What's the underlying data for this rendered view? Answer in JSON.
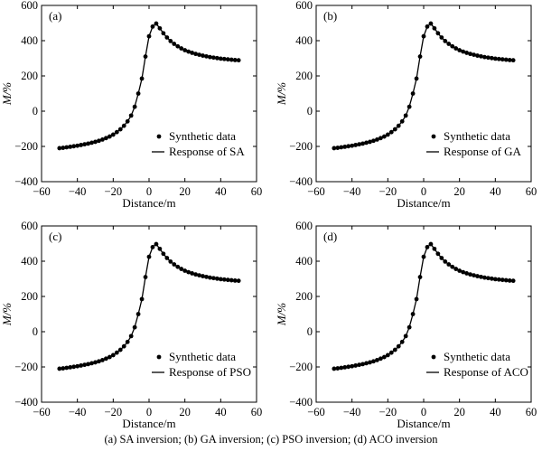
{
  "figure": {
    "caption": "(a) SA inversion; (b) GA inversion; (c) PSO inversion; (d) ACO inversion"
  },
  "chart_data": [
    {
      "type": "line",
      "panel_label": "(a)",
      "xlabel": "Distance/m",
      "ylabel": "M/%",
      "xlim": [
        -60,
        60
      ],
      "ylim": [
        -400,
        600
      ],
      "xticks": [
        "−60",
        "−40",
        "−20",
        "0",
        "20",
        "40",
        "60"
      ],
      "yticks": [
        "−400",
        "−200",
        "0",
        "200",
        "400",
        "600"
      ],
      "grid": false,
      "legend_position": "lower-right",
      "series": [
        {
          "name": "Synthetic data",
          "style": "markers",
          "x": [
            -50,
            -48,
            -46,
            -44,
            -42,
            -40,
            -38,
            -36,
            -34,
            -32,
            -30,
            -28,
            -26,
            -24,
            -22,
            -20,
            -18,
            -16,
            -14,
            -12,
            -10,
            -8,
            -6,
            -4,
            -2,
            0,
            2,
            4,
            6,
            8,
            10,
            12,
            14,
            16,
            18,
            20,
            22,
            24,
            26,
            28,
            30,
            32,
            34,
            36,
            38,
            40,
            42,
            44,
            46,
            48,
            50
          ],
          "y": [
            -210,
            -208,
            -205,
            -202,
            -199,
            -196,
            -192,
            -188,
            -184,
            -179,
            -174,
            -168,
            -161,
            -153,
            -144,
            -133,
            -119,
            -103,
            -83,
            -58,
            -25,
            25,
            100,
            185,
            310,
            425,
            480,
            497,
            470,
            442,
            418,
            398,
            382,
            368,
            356,
            346,
            338,
            331,
            325,
            320,
            315,
            311,
            307,
            304,
            301,
            298,
            296,
            294,
            292,
            290,
            289
          ]
        },
        {
          "name": "Response of SA",
          "style": "line",
          "x": [
            -50,
            -48,
            -46,
            -44,
            -42,
            -40,
            -38,
            -36,
            -34,
            -32,
            -30,
            -28,
            -26,
            -24,
            -22,
            -20,
            -18,
            -16,
            -14,
            -12,
            -10,
            -8,
            -6,
            -4,
            -2,
            0,
            2,
            4,
            6,
            8,
            10,
            12,
            14,
            16,
            18,
            20,
            22,
            24,
            26,
            28,
            30,
            32,
            34,
            36,
            38,
            40,
            42,
            44,
            46,
            48,
            50
          ],
          "y": [
            -210,
            -208,
            -205,
            -202,
            -199,
            -196,
            -192,
            -188,
            -184,
            -179,
            -174,
            -168,
            -161,
            -153,
            -144,
            -133,
            -119,
            -103,
            -83,
            -58,
            -25,
            25,
            100,
            185,
            310,
            425,
            480,
            497,
            470,
            442,
            418,
            398,
            382,
            368,
            356,
            346,
            338,
            331,
            325,
            320,
            315,
            311,
            307,
            304,
            301,
            298,
            296,
            294,
            292,
            290,
            289
          ]
        }
      ]
    },
    {
      "type": "line",
      "panel_label": "(b)",
      "xlabel": "Distance/m",
      "ylabel": "M/%",
      "xlim": [
        -60,
        60
      ],
      "ylim": [
        -400,
        600
      ],
      "xticks": [
        "−60",
        "−40",
        "−20",
        "0",
        "20",
        "40",
        "60"
      ],
      "yticks": [
        "−400",
        "−200",
        "0",
        "200",
        "400",
        "600"
      ],
      "grid": false,
      "legend_position": "lower-right",
      "series": [
        {
          "name": "Synthetic data",
          "style": "markers",
          "x": [
            -50,
            -48,
            -46,
            -44,
            -42,
            -40,
            -38,
            -36,
            -34,
            -32,
            -30,
            -28,
            -26,
            -24,
            -22,
            -20,
            -18,
            -16,
            -14,
            -12,
            -10,
            -8,
            -6,
            -4,
            -2,
            0,
            2,
            4,
            6,
            8,
            10,
            12,
            14,
            16,
            18,
            20,
            22,
            24,
            26,
            28,
            30,
            32,
            34,
            36,
            38,
            40,
            42,
            44,
            46,
            48,
            50
          ],
          "y": [
            -210,
            -208,
            -205,
            -202,
            -199,
            -196,
            -192,
            -188,
            -184,
            -179,
            -174,
            -168,
            -161,
            -153,
            -144,
            -133,
            -119,
            -103,
            -83,
            -58,
            -25,
            25,
            100,
            185,
            310,
            425,
            480,
            497,
            470,
            442,
            418,
            398,
            382,
            368,
            356,
            346,
            338,
            331,
            325,
            320,
            315,
            311,
            307,
            304,
            301,
            298,
            296,
            294,
            292,
            290,
            289
          ]
        },
        {
          "name": "Response of GA",
          "style": "line",
          "x": [
            -50,
            -48,
            -46,
            -44,
            -42,
            -40,
            -38,
            -36,
            -34,
            -32,
            -30,
            -28,
            -26,
            -24,
            -22,
            -20,
            -18,
            -16,
            -14,
            -12,
            -10,
            -8,
            -6,
            -4,
            -2,
            0,
            2,
            4,
            6,
            8,
            10,
            12,
            14,
            16,
            18,
            20,
            22,
            24,
            26,
            28,
            30,
            32,
            34,
            36,
            38,
            40,
            42,
            44,
            46,
            48,
            50
          ],
          "y": [
            -210,
            -208,
            -205,
            -202,
            -199,
            -196,
            -192,
            -188,
            -184,
            -179,
            -174,
            -168,
            -161,
            -153,
            -144,
            -133,
            -119,
            -103,
            -83,
            -58,
            -25,
            25,
            100,
            185,
            310,
            425,
            480,
            497,
            470,
            442,
            418,
            398,
            382,
            368,
            356,
            346,
            338,
            331,
            325,
            320,
            315,
            311,
            307,
            304,
            301,
            298,
            296,
            294,
            292,
            290,
            289
          ]
        }
      ]
    },
    {
      "type": "line",
      "panel_label": "(c)",
      "xlabel": "Distance/m",
      "ylabel": "M/%",
      "xlim": [
        -60,
        60
      ],
      "ylim": [
        -400,
        600
      ],
      "xticks": [
        "−60",
        "−40",
        "−20",
        "0",
        "20",
        "40",
        "60"
      ],
      "yticks": [
        "−400",
        "−200",
        "0",
        "200",
        "400",
        "600"
      ],
      "grid": false,
      "legend_position": "lower-right",
      "series": [
        {
          "name": "Synthetic data",
          "style": "markers",
          "x": [
            -50,
            -48,
            -46,
            -44,
            -42,
            -40,
            -38,
            -36,
            -34,
            -32,
            -30,
            -28,
            -26,
            -24,
            -22,
            -20,
            -18,
            -16,
            -14,
            -12,
            -10,
            -8,
            -6,
            -4,
            -2,
            0,
            2,
            4,
            6,
            8,
            10,
            12,
            14,
            16,
            18,
            20,
            22,
            24,
            26,
            28,
            30,
            32,
            34,
            36,
            38,
            40,
            42,
            44,
            46,
            48,
            50
          ],
          "y": [
            -210,
            -208,
            -205,
            -202,
            -199,
            -196,
            -192,
            -188,
            -184,
            -179,
            -174,
            -168,
            -161,
            -153,
            -144,
            -133,
            -119,
            -103,
            -83,
            -58,
            -25,
            25,
            100,
            185,
            310,
            425,
            480,
            497,
            470,
            442,
            418,
            398,
            382,
            368,
            356,
            346,
            338,
            331,
            325,
            320,
            315,
            311,
            307,
            304,
            301,
            298,
            296,
            294,
            292,
            290,
            289
          ]
        },
        {
          "name": "Response of PSO",
          "style": "line",
          "x": [
            -50,
            -48,
            -46,
            -44,
            -42,
            -40,
            -38,
            -36,
            -34,
            -32,
            -30,
            -28,
            -26,
            -24,
            -22,
            -20,
            -18,
            -16,
            -14,
            -12,
            -10,
            -8,
            -6,
            -4,
            -2,
            0,
            2,
            4,
            6,
            8,
            10,
            12,
            14,
            16,
            18,
            20,
            22,
            24,
            26,
            28,
            30,
            32,
            34,
            36,
            38,
            40,
            42,
            44,
            46,
            48,
            50
          ],
          "y": [
            -210,
            -208,
            -205,
            -202,
            -199,
            -196,
            -192,
            -188,
            -184,
            -179,
            -174,
            -168,
            -161,
            -153,
            -144,
            -133,
            -119,
            -103,
            -83,
            -58,
            -25,
            25,
            100,
            185,
            310,
            425,
            480,
            497,
            470,
            442,
            418,
            398,
            382,
            368,
            356,
            346,
            338,
            331,
            325,
            320,
            315,
            311,
            307,
            304,
            301,
            298,
            296,
            294,
            292,
            290,
            289
          ]
        }
      ]
    },
    {
      "type": "line",
      "panel_label": "(d)",
      "xlabel": "Distance/m",
      "ylabel": "M/%",
      "xlim": [
        -60,
        60
      ],
      "ylim": [
        -400,
        600
      ],
      "xticks": [
        "−60",
        "−40",
        "−20",
        "0",
        "20",
        "40",
        "60"
      ],
      "yticks": [
        "−400",
        "−200",
        "0",
        "200",
        "400",
        "600"
      ],
      "grid": false,
      "legend_position": "lower-right",
      "series": [
        {
          "name": "Synthetic data",
          "style": "markers",
          "x": [
            -50,
            -48,
            -46,
            -44,
            -42,
            -40,
            -38,
            -36,
            -34,
            -32,
            -30,
            -28,
            -26,
            -24,
            -22,
            -20,
            -18,
            -16,
            -14,
            -12,
            -10,
            -8,
            -6,
            -4,
            -2,
            0,
            2,
            4,
            6,
            8,
            10,
            12,
            14,
            16,
            18,
            20,
            22,
            24,
            26,
            28,
            30,
            32,
            34,
            36,
            38,
            40,
            42,
            44,
            46,
            48,
            50
          ],
          "y": [
            -210,
            -208,
            -205,
            -202,
            -199,
            -196,
            -192,
            -188,
            -184,
            -179,
            -174,
            -168,
            -161,
            -153,
            -144,
            -133,
            -119,
            -103,
            -83,
            -58,
            -25,
            25,
            100,
            185,
            310,
            425,
            480,
            497,
            470,
            442,
            418,
            398,
            382,
            368,
            356,
            346,
            338,
            331,
            325,
            320,
            315,
            311,
            307,
            304,
            301,
            298,
            296,
            294,
            292,
            290,
            289
          ]
        },
        {
          "name": "Response of ACO",
          "style": "line",
          "x": [
            -50,
            -48,
            -46,
            -44,
            -42,
            -40,
            -38,
            -36,
            -34,
            -32,
            -30,
            -28,
            -26,
            -24,
            -22,
            -20,
            -18,
            -16,
            -14,
            -12,
            -10,
            -8,
            -6,
            -4,
            -2,
            0,
            2,
            4,
            6,
            8,
            10,
            12,
            14,
            16,
            18,
            20,
            22,
            24,
            26,
            28,
            30,
            32,
            34,
            36,
            38,
            40,
            42,
            44,
            46,
            48,
            50
          ],
          "y": [
            -210,
            -208,
            -205,
            -202,
            -199,
            -196,
            -192,
            -188,
            -184,
            -179,
            -174,
            -168,
            -161,
            -153,
            -144,
            -133,
            -119,
            -103,
            -83,
            -58,
            -25,
            25,
            100,
            185,
            310,
            425,
            480,
            497,
            470,
            442,
            418,
            398,
            382,
            368,
            356,
            346,
            338,
            331,
            325,
            320,
            315,
            311,
            307,
            304,
            301,
            298,
            296,
            294,
            292,
            290,
            289
          ]
        }
      ]
    }
  ]
}
